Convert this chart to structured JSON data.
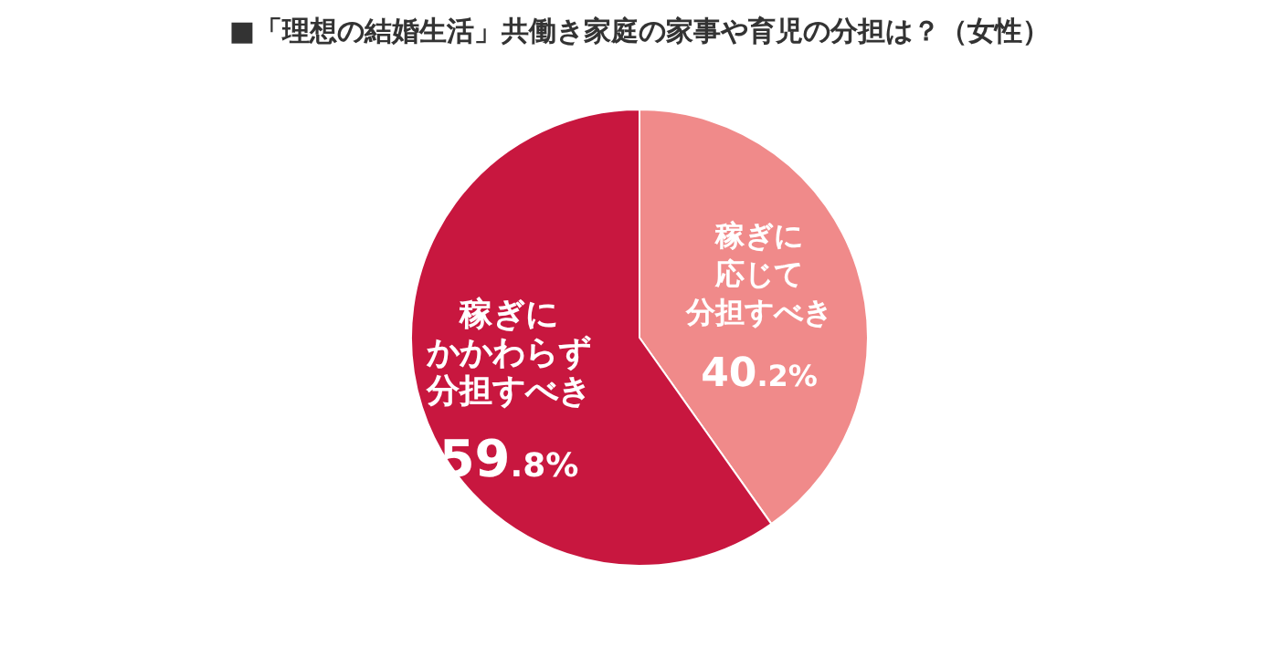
{
  "chart_data": {
    "type": "pie",
    "title": "■「理想の結婚生活」共働き家庭の家事や育児の分担は？（女性）",
    "categories": [
      "稼ぎに応じて分担すべき",
      "稼ぎにかかわらず分担すべき"
    ],
    "values": [
      40.2,
      59.8
    ],
    "value_labels": [
      "40.2%",
      "59.8%"
    ],
    "colors": [
      "#f08a8a",
      "#c8173f"
    ]
  }
}
